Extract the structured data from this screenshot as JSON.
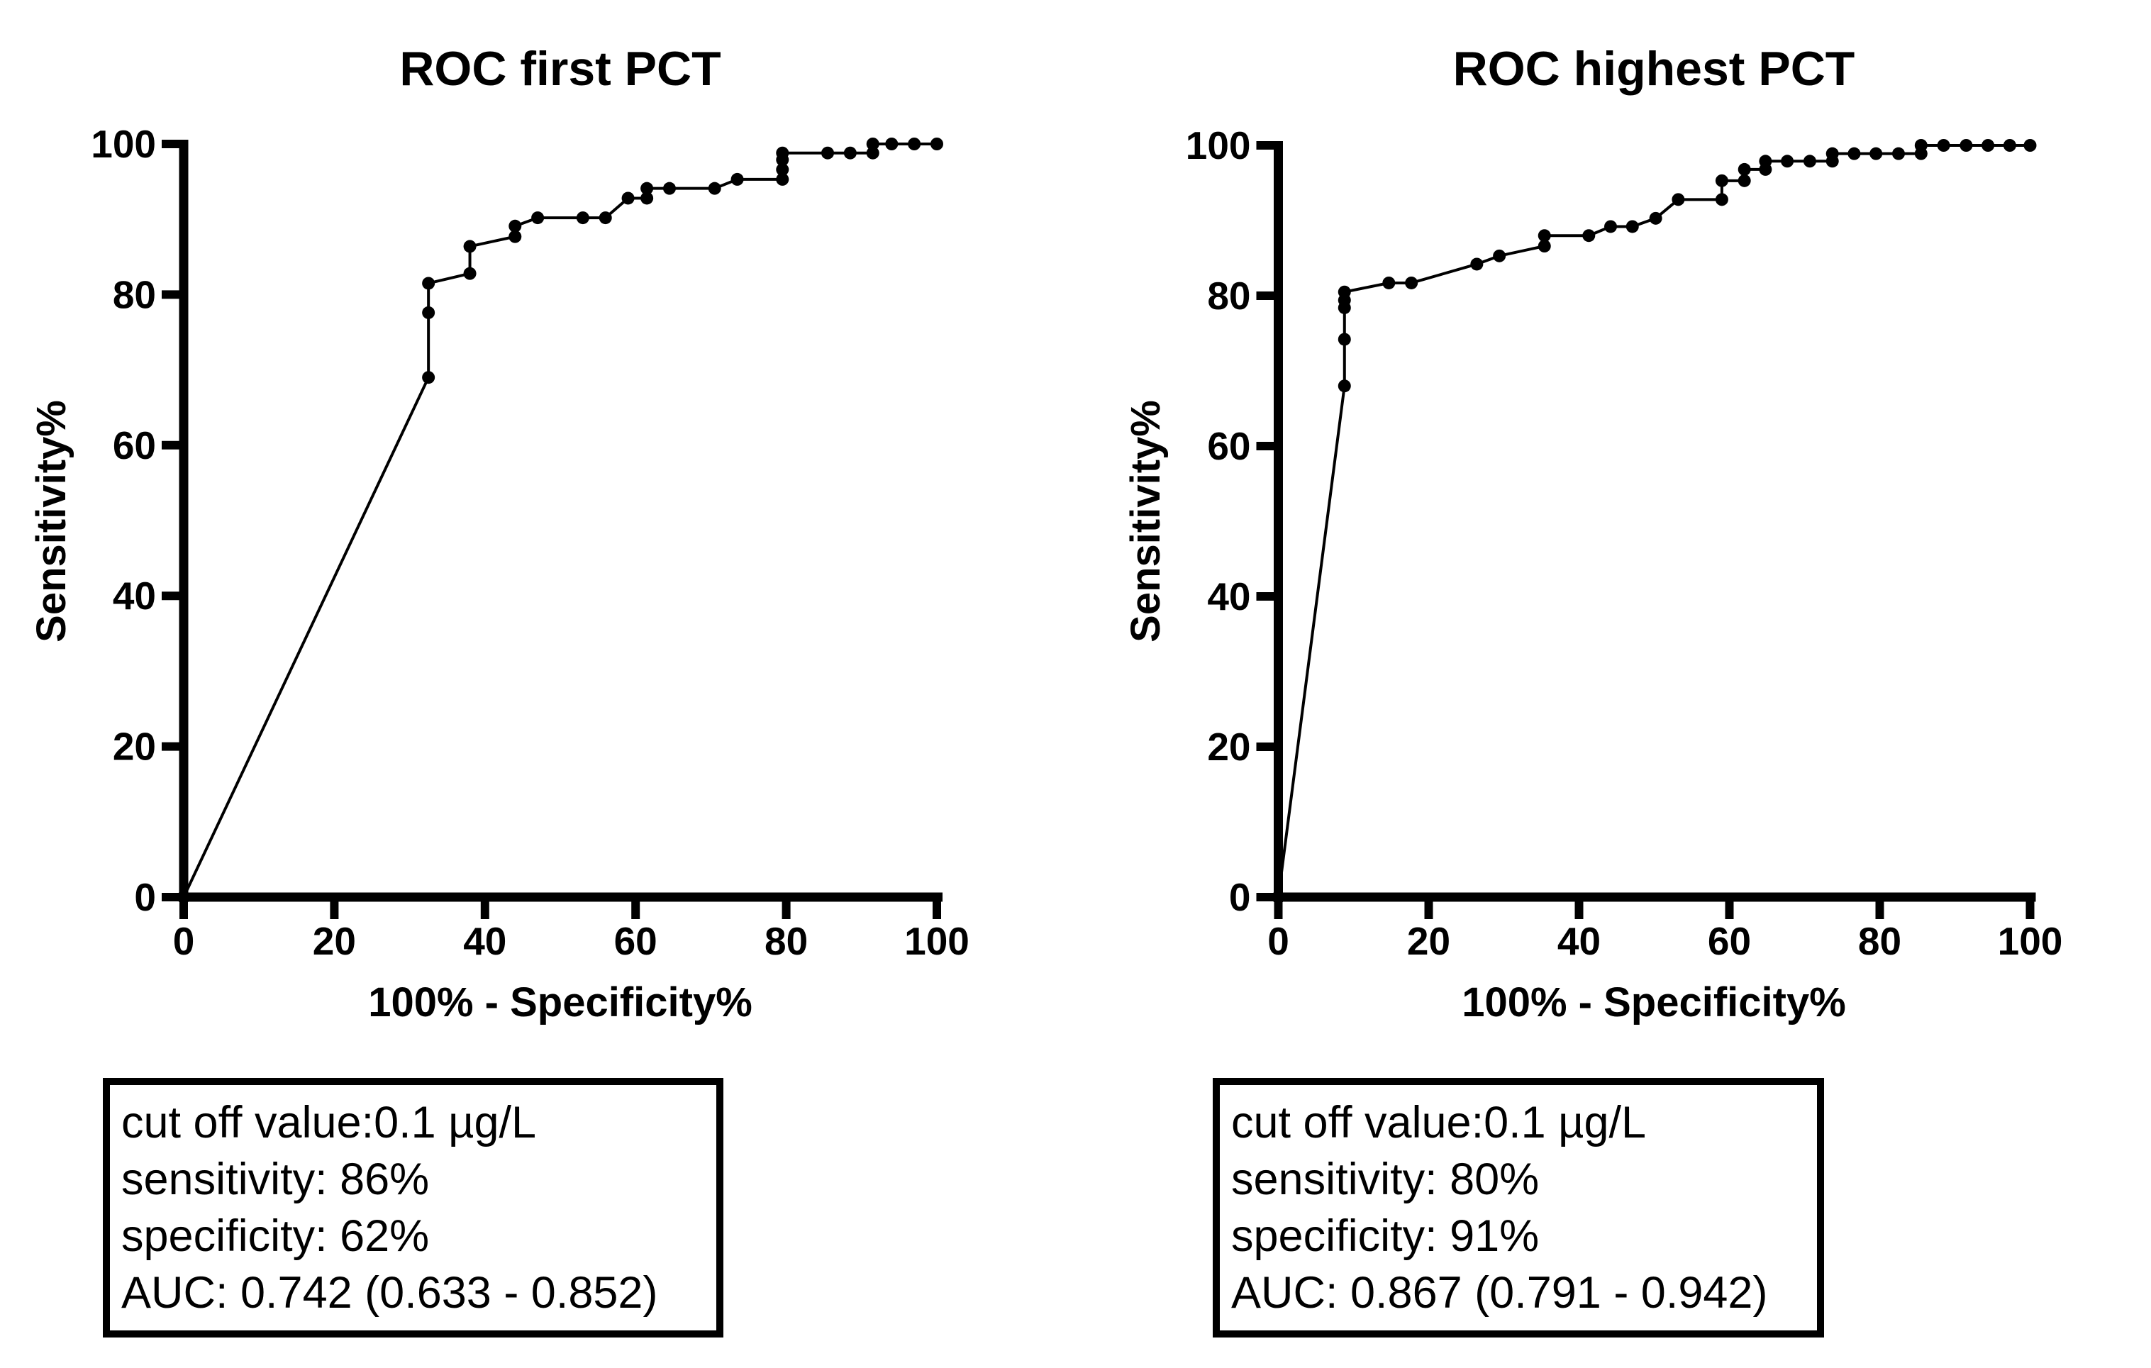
{
  "figure": {
    "background_color": "#ffffff",
    "ink_color": "#000000"
  },
  "chart_data": [
    {
      "type": "line",
      "title": "ROC first PCT",
      "xlabel": "100% - Specificity%",
      "ylabel": "Sensitivity%",
      "xlim": [
        0,
        100
      ],
      "ylim": [
        0,
        100
      ],
      "x_ticks": [
        0,
        20,
        40,
        60,
        80,
        100
      ],
      "y_ticks": [
        0,
        20,
        40,
        60,
        80,
        100
      ],
      "grid": false,
      "legend": "none",
      "series": [
        {
          "name": "ROC curve (first PCT)",
          "marker": "filled-circle",
          "points": [
            [
              0,
              0
            ],
            [
              32.5,
              69.0
            ],
            [
              32.5,
              77.6
            ],
            [
              32.5,
              81.5
            ],
            [
              38.0,
              82.8
            ],
            [
              38.0,
              86.4
            ],
            [
              44.0,
              87.7
            ],
            [
              44.0,
              89.1
            ],
            [
              47.0,
              90.2
            ],
            [
              53.0,
              90.2
            ],
            [
              56.0,
              90.2
            ],
            [
              59.0,
              92.8
            ],
            [
              61.5,
              92.8
            ],
            [
              61.5,
              94.1
            ],
            [
              64.5,
              94.1
            ],
            [
              70.5,
              94.1
            ],
            [
              73.5,
              95.3
            ],
            [
              79.5,
              95.3
            ],
            [
              79.5,
              96.6
            ],
            [
              79.5,
              97.9
            ],
            [
              79.5,
              98.8
            ],
            [
              85.5,
              98.8
            ],
            [
              88.5,
              98.8
            ],
            [
              91.5,
              98.8
            ],
            [
              91.5,
              100
            ],
            [
              94.0,
              100
            ],
            [
              97.0,
              100
            ],
            [
              100,
              100
            ]
          ]
        }
      ],
      "stats_box": {
        "lines": [
          "cut off value:0.1 µg/L",
          "sensitivity: 86%",
          "specificity: 62%",
          "AUC: 0.742 (0.633 - 0.852)"
        ]
      }
    },
    {
      "type": "line",
      "title": "ROC highest PCT",
      "xlabel": "100% - Specificity%",
      "ylabel": "Sensitivity%",
      "xlim": [
        0,
        100
      ],
      "ylim": [
        0,
        100
      ],
      "x_ticks": [
        0,
        20,
        40,
        60,
        80,
        100
      ],
      "y_ticks": [
        0,
        20,
        40,
        60,
        80,
        100
      ],
      "grid": false,
      "legend": "none",
      "series": [
        {
          "name": "ROC curve (highest PCT)",
          "marker": "filled-circle",
          "points": [
            [
              0,
              0
            ],
            [
              8.8,
              68.0
            ],
            [
              8.8,
              74.2
            ],
            [
              8.8,
              78.4
            ],
            [
              8.8,
              79.4
            ],
            [
              8.8,
              80.5
            ],
            [
              14.7,
              81.7
            ],
            [
              17.7,
              81.7
            ],
            [
              26.4,
              84.2
            ],
            [
              29.4,
              85.3
            ],
            [
              35.4,
              86.6
            ],
            [
              35.4,
              88.0
            ],
            [
              41.3,
              88.0
            ],
            [
              44.2,
              89.2
            ],
            [
              47.1,
              89.2
            ],
            [
              50.2,
              90.3
            ],
            [
              53.2,
              92.8
            ],
            [
              59.0,
              92.8
            ],
            [
              59.0,
              95.3
            ],
            [
              62.0,
              95.3
            ],
            [
              62.0,
              96.8
            ],
            [
              64.8,
              96.8
            ],
            [
              64.8,
              97.9
            ],
            [
              67.7,
              97.9
            ],
            [
              70.7,
              97.9
            ],
            [
              73.7,
              97.9
            ],
            [
              73.7,
              98.9
            ],
            [
              76.6,
              98.9
            ],
            [
              79.5,
              98.9
            ],
            [
              82.5,
              98.9
            ],
            [
              85.5,
              98.9
            ],
            [
              85.5,
              100
            ],
            [
              88.5,
              100
            ],
            [
              91.5,
              100
            ],
            [
              94.4,
              100
            ],
            [
              97.3,
              100
            ],
            [
              100,
              100
            ]
          ]
        }
      ],
      "stats_box": {
        "lines": [
          "cut off value:0.1 µg/L",
          "sensitivity: 80%",
          "specificity: 91%",
          "AUC: 0.867 (0.791 - 0.942)"
        ]
      }
    }
  ]
}
